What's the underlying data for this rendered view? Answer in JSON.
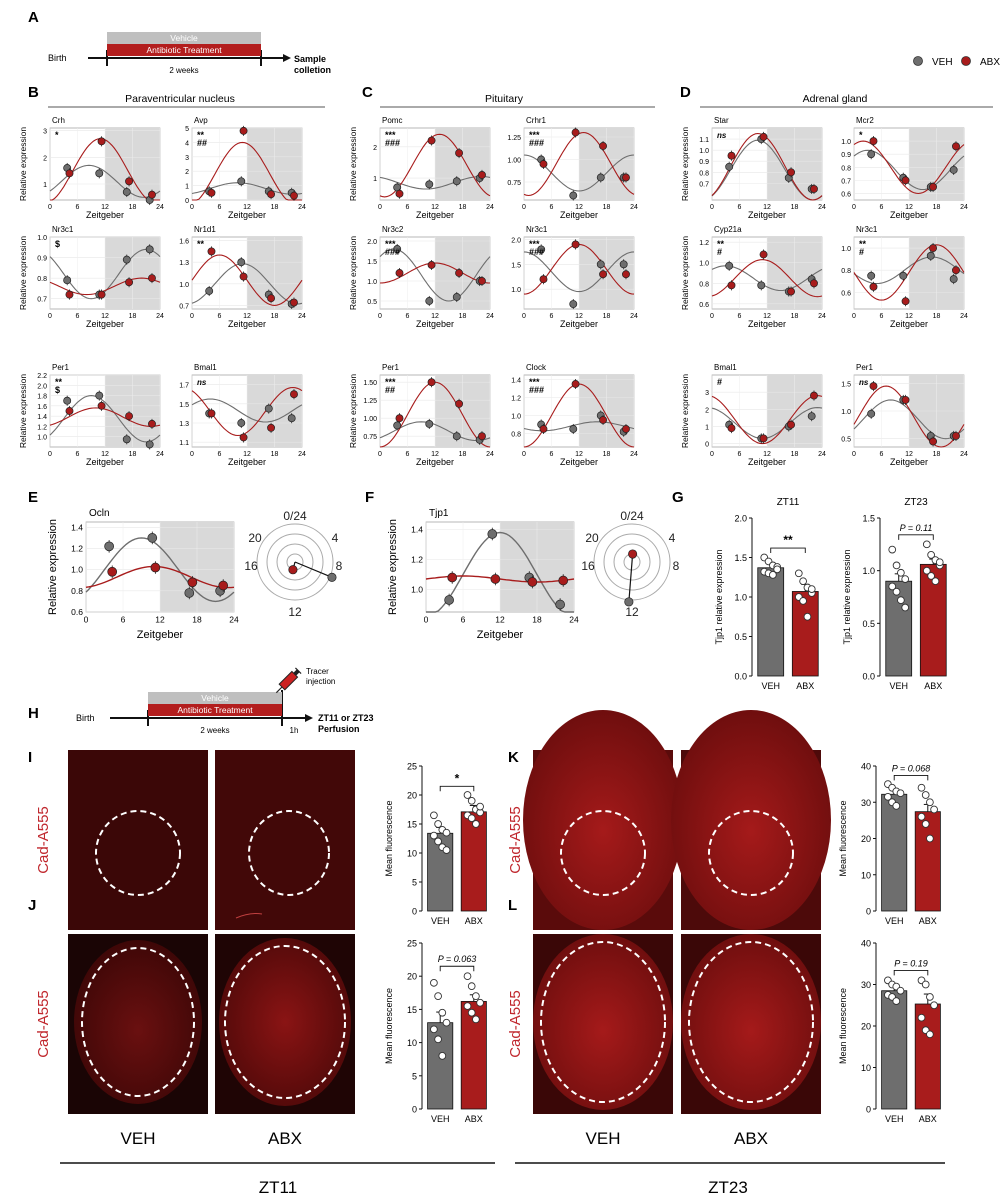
{
  "panelA": {
    "letter": "A",
    "birth": "Birth",
    "vehicle": "Vehicle",
    "treatment": "Antibiotic Treatment",
    "duration": "2 weeks",
    "sample1": "Sample",
    "sample2": "colletion"
  },
  "legend": {
    "veh": "VEH",
    "abx": "ABX"
  },
  "colors": {
    "veh": "#6e6e6e",
    "abx": "#a81c1c",
    "shade": "#d9d9d9",
    "tissue_bg": "#2a0a0a",
    "tissue": "#5a0f0f"
  },
  "sections": [
    {
      "letter": "B",
      "title": "Paraventricular nucleus"
    },
    {
      "letter": "C",
      "title": "Pituitary"
    },
    {
      "letter": "D",
      "title": "Adrenal gland"
    }
  ],
  "mini_axis": {
    "xlabel": "Zeitgeber",
    "ylabel": "Relative expression",
    "xticks": [
      "0",
      "6",
      "12",
      "18",
      "24"
    ]
  },
  "chart_data": [
    {
      "type": "line",
      "gene": "Crh",
      "sig": [
        "*"
      ],
      "ylim": [
        0.4,
        3.1
      ],
      "yticks": [
        "1",
        "2",
        "3"
      ],
      "yt": [
        1,
        2,
        3
      ],
      "x": [
        4,
        11,
        17,
        22
      ],
      "veh": [
        1.6,
        1.4,
        0.7,
        0.4
      ],
      "abx": [
        1.4,
        2.6,
        1.1,
        0.6
      ],
      "veh_fit": {
        "m": 1.1,
        "a": 0.6,
        "p": 8.5
      },
      "abx_fit": {
        "m": 1.5,
        "a": 1.2,
        "p": 11
      }
    },
    {
      "type": "line",
      "gene": "Avp",
      "sig": [
        "**",
        "##"
      ],
      "ylim": [
        0,
        5
      ],
      "yticks": [
        "0",
        "1",
        "2",
        "3",
        "4",
        "5"
      ],
      "yt": [
        0,
        1,
        2,
        3,
        4,
        5
      ],
      "x": [
        4,
        11,
        17,
        22
      ],
      "veh": [
        0.6,
        1.3,
        0.6,
        0.5
      ],
      "abx": [
        0.5,
        4.8,
        0.4,
        0.3
      ],
      "veh_fit": {
        "m": 0.8,
        "a": 0.4,
        "p": 10
      },
      "abx_fit": {
        "m": 1.8,
        "a": 2.2,
        "p": 11
      }
    },
    {
      "type": "line",
      "gene": "Nr3c1",
      "sig": [
        "$"
      ],
      "ylim": [
        0.65,
        1.0
      ],
      "yticks": [
        "0.7",
        "0.8",
        "0.9",
        "1.0"
      ],
      "yt": [
        0.7,
        0.8,
        0.9,
        1.0
      ],
      "x": [
        4,
        11,
        17,
        22
      ],
      "veh": [
        0.79,
        0.72,
        0.89,
        0.94
      ],
      "abx": [
        0.72,
        0.72,
        0.78,
        0.8
      ],
      "veh_fit": {
        "m": 0.82,
        "a": 0.12,
        "p": 21
      },
      "abx_fit": {
        "m": 0.76,
        "a": 0.04,
        "p": 20
      }
    },
    {
      "type": "line",
      "gene": "Nr1d1",
      "sig": [
        "**"
      ],
      "ylim": [
        0.65,
        1.65
      ],
      "yticks": [
        "0.7",
        "1.0",
        "1.3",
        "1.6"
      ],
      "yt": [
        0.7,
        1.0,
        1.3,
        1.6
      ],
      "x": [
        4,
        11,
        17,
        22
      ],
      "veh": [
        0.9,
        1.3,
        0.85,
        0.72
      ],
      "abx": [
        1.45,
        1.1,
        0.8,
        0.74
      ],
      "veh_fit": {
        "m": 1.0,
        "a": 0.28,
        "p": 11
      },
      "abx_fit": {
        "m": 1.05,
        "a": 0.35,
        "p": 6
      }
    },
    {
      "type": "line",
      "gene": "Per1",
      "sig": [
        "**",
        "$"
      ],
      "ylim": [
        0.8,
        2.2
      ],
      "yticks": [
        "1.0",
        "1.2",
        "1.4",
        "1.6",
        "1.8",
        "2.0",
        "2.2"
      ],
      "yt": [
        1.0,
        1.2,
        1.4,
        1.6,
        1.8,
        2.0,
        2.2
      ],
      "x": [
        4,
        11,
        17,
        22
      ],
      "veh": [
        1.7,
        1.8,
        0.95,
        0.85
      ],
      "abx": [
        1.5,
        1.6,
        1.4,
        1.25
      ],
      "veh_fit": {
        "m": 1.35,
        "a": 0.45,
        "p": 9
      },
      "abx_fit": {
        "m": 1.38,
        "a": 0.18,
        "p": 10
      }
    },
    {
      "type": "line",
      "gene": "Bmal1",
      "sig": [
        "ns"
      ],
      "ylim": [
        1.05,
        1.8
      ],
      "yticks": [
        "1.1",
        "1.3",
        "1.5",
        "1.7"
      ],
      "yt": [
        1.1,
        1.3,
        1.5,
        1.7
      ],
      "x": [
        4,
        11,
        17,
        22
      ],
      "veh": [
        1.4,
        1.3,
        1.45,
        1.35
      ],
      "abx": [
        1.4,
        1.15,
        1.25,
        1.6
      ],
      "veh_fit": {
        "m": 1.43,
        "a": 0.12,
        "p": 4
      },
      "abx_fit": {
        "m": 1.42,
        "a": 0.25,
        "p": 22
      }
    },
    {
      "type": "line",
      "gene": "Pomc",
      "sig": [
        "***",
        "###"
      ],
      "ylim": [
        0.3,
        2.6
      ],
      "yticks": [
        "1",
        "2"
      ],
      "yt": [
        1,
        2
      ],
      "x": [
        4,
        11,
        17,
        22
      ],
      "veh": [
        0.7,
        0.8,
        0.9,
        1.0
      ],
      "abx": [
        0.5,
        2.2,
        1.8,
        1.1
      ],
      "veh_fit": {
        "m": 0.85,
        "a": 0.2,
        "p": 22
      },
      "abx_fit": {
        "m": 1.4,
        "a": 1.0,
        "p": 13
      }
    },
    {
      "type": "line",
      "gene": "Crhr1",
      "sig": [
        "***",
        "###"
      ],
      "ylim": [
        0.55,
        1.35
      ],
      "yticks": [
        "0.75",
        "1.00",
        "1.25"
      ],
      "yt": [
        0.75,
        1.0,
        1.25
      ],
      "x": [
        4,
        11,
        17,
        22
      ],
      "veh": [
        1.0,
        0.6,
        0.8,
        0.8
      ],
      "abx": [
        0.95,
        1.3,
        1.15,
        0.8
      ],
      "veh_fit": {
        "m": 0.85,
        "a": 0.2,
        "p": 0
      },
      "abx_fit": {
        "m": 0.95,
        "a": 0.35,
        "p": 13
      }
    },
    {
      "type": "line",
      "gene": "Nr3c2",
      "sig": [
        "***",
        "###"
      ],
      "ylim": [
        0.3,
        2.1
      ],
      "yticks": [
        "0.5",
        "1.0",
        "1.5",
        "2.0"
      ],
      "yt": [
        0.5,
        1.0,
        1.5,
        2.0
      ],
      "x": [
        4,
        11,
        17,
        22
      ],
      "veh": [
        1.8,
        0.5,
        0.6,
        1.0
      ],
      "abx": [
        1.2,
        1.4,
        1.2,
        1.0
      ],
      "veh_fit": {
        "m": 1.15,
        "a": 0.65,
        "p": 3
      },
      "abx_fit": {
        "m": 1.2,
        "a": 0.25,
        "p": 12
      }
    },
    {
      "type": "line",
      "gene": "Nr3c1",
      "sig": [
        "***",
        "###"
      ],
      "ylim": [
        0.6,
        2.05
      ],
      "yticks": [
        "1.0",
        "1.5",
        "2.0"
      ],
      "yt": [
        1.0,
        1.5,
        2.0
      ],
      "x": [
        4,
        11,
        17,
        22
      ],
      "veh": [
        1.8,
        0.7,
        1.5,
        1.5
      ],
      "abx": [
        1.2,
        1.9,
        1.3,
        1.3
      ],
      "veh_fit": {
        "m": 1.35,
        "a": 0.4,
        "p": 0
      },
      "abx_fit": {
        "m": 1.4,
        "a": 0.5,
        "p": 12
      }
    },
    {
      "type": "line",
      "gene": "Per1",
      "sig": [
        "***",
        "##"
      ],
      "ylim": [
        0.6,
        1.6
      ],
      "yticks": [
        "0.75",
        "1.00",
        "1.25",
        "1.50"
      ],
      "yt": [
        0.75,
        1.0,
        1.25,
        1.5
      ],
      "x": [
        4,
        11,
        17,
        22
      ],
      "veh": [
        0.9,
        0.92,
        0.75,
        0.7
      ],
      "abx": [
        1.0,
        1.5,
        1.2,
        0.75
      ],
      "veh_fit": {
        "m": 0.82,
        "a": 0.13,
        "p": 9
      },
      "abx_fit": {
        "m": 1.05,
        "a": 0.45,
        "p": 12
      }
    },
    {
      "type": "line",
      "gene": "Clock",
      "sig": [
        "***",
        "###"
      ],
      "ylim": [
        0.65,
        1.45
      ],
      "yticks": [
        "0.8",
        "1.0",
        "1.2",
        "1.4"
      ],
      "yt": [
        0.8,
        1.0,
        1.2,
        1.4
      ],
      "x": [
        4,
        11,
        17,
        22
      ],
      "veh": [
        0.9,
        0.85,
        1.0,
        0.82
      ],
      "abx": [
        0.85,
        1.35,
        0.95,
        0.85
      ],
      "veh_fit": {
        "m": 0.88,
        "a": 0.05,
        "p": 16
      },
      "abx_fit": {
        "m": 1.0,
        "a": 0.35,
        "p": 12
      }
    },
    {
      "type": "line",
      "gene": "Star",
      "sig": [
        "ns"
      ],
      "ylim": [
        0.55,
        1.2
      ],
      "yticks": [
        "0.7",
        "0.8",
        "0.9",
        "1.0",
        "1.1"
      ],
      "yt": [
        0.7,
        0.8,
        0.9,
        1.0,
        1.1
      ],
      "x": [
        4,
        11,
        17,
        22
      ],
      "veh": [
        0.85,
        1.1,
        0.75,
        0.65
      ],
      "abx": [
        0.95,
        1.12,
        0.8,
        0.65
      ],
      "veh_fit": {
        "m": 0.82,
        "a": 0.27,
        "p": 10
      },
      "abx_fit": {
        "m": 0.85,
        "a": 0.3,
        "p": 10
      }
    },
    {
      "type": "line",
      "gene": "Mcr2",
      "sig": [
        "*"
      ],
      "ylim": [
        0.55,
        1.1
      ],
      "yticks": [
        "0.6",
        "0.7",
        "0.8",
        "0.9",
        "1.0"
      ],
      "yt": [
        0.6,
        0.7,
        0.8,
        0.9,
        1.0
      ],
      "x": [
        4,
        11,
        17,
        22
      ],
      "veh": [
        0.9,
        0.72,
        0.65,
        0.78
      ],
      "abx": [
        1.0,
        0.7,
        0.65,
        0.96
      ],
      "veh_fit": {
        "m": 0.78,
        "a": 0.15,
        "p": 3
      },
      "abx_fit": {
        "m": 0.8,
        "a": 0.2,
        "p": 2
      }
    },
    {
      "type": "line",
      "gene": "Cyp21a",
      "sig": [
        "**",
        "#"
      ],
      "ylim": [
        0.55,
        1.25
      ],
      "yticks": [
        "0.6",
        "0.8",
        "1.0",
        "1.2"
      ],
      "yt": [
        0.6,
        0.8,
        1.0,
        1.2
      ],
      "x": [
        4,
        11,
        17,
        22
      ],
      "veh": [
        0.97,
        0.78,
        0.72,
        0.84
      ],
      "abx": [
        0.78,
        1.08,
        0.72,
        0.8
      ],
      "veh_fit": {
        "m": 0.85,
        "a": 0.12,
        "p": 3
      },
      "abx_fit": {
        "m": 0.85,
        "a": 0.18,
        "p": 11
      }
    },
    {
      "type": "line",
      "gene": "Nr3c1",
      "sig": [
        "**",
        "#"
      ],
      "ylim": [
        0.45,
        1.1
      ],
      "yticks": [
        "0.6",
        "0.8",
        "1.0"
      ],
      "yt": [
        0.6,
        0.8,
        1.0
      ],
      "x": [
        4,
        11,
        17,
        22
      ],
      "veh": [
        0.75,
        0.75,
        0.93,
        0.72
      ],
      "abx": [
        0.65,
        0.52,
        1.0,
        0.8
      ],
      "veh_fit": {
        "m": 0.8,
        "a": 0.12,
        "p": 17
      },
      "abx_fit": {
        "m": 0.78,
        "a": 0.25,
        "p": 18
      }
    },
    {
      "type": "line",
      "gene": "Bmal1",
      "sig": [
        "#"
      ],
      "ylim": [
        -0.2,
        4.0
      ],
      "yticks": [
        "0",
        "1",
        "2",
        "3"
      ],
      "yt": [
        0,
        1,
        2,
        3
      ],
      "x": [
        4,
        11,
        17,
        22
      ],
      "veh": [
        1.1,
        0.3,
        1.0,
        1.6
      ],
      "abx": [
        0.9,
        0.3,
        1.1,
        2.8
      ],
      "veh_fit": {
        "m": 1.2,
        "a": 0.9,
        "p": 23
      },
      "abx_fit": {
        "m": 1.4,
        "a": 1.4,
        "p": 23
      }
    },
    {
      "type": "line",
      "gene": "Per1",
      "sig": [
        "ns"
      ],
      "ylim": [
        0.35,
        1.65
      ],
      "yticks": [
        "0.5",
        "1.0",
        "1.5"
      ],
      "yt": [
        0.5,
        1.0,
        1.5
      ],
      "x": [
        4,
        11,
        17,
        22
      ],
      "veh": [
        0.95,
        1.2,
        0.55,
        0.55
      ],
      "abx": [
        1.45,
        1.2,
        0.45,
        0.55
      ],
      "veh_fit": {
        "m": 0.85,
        "a": 0.35,
        "p": 8
      },
      "abx_fit": {
        "m": 0.9,
        "a": 0.55,
        "p": 7
      }
    }
  ],
  "panelE": {
    "letter": "E",
    "gene": "Ocln",
    "ylabel": "Relative expression",
    "xlabel": "Zeitgeber",
    "yticks": [
      "0.6",
      "0.8",
      "1.0",
      "1.2",
      "1.4"
    ],
    "yt": [
      0.6,
      0.8,
      1.0,
      1.2,
      1.4
    ],
    "ylim": [
      0.6,
      1.45
    ],
    "x": [
      4,
      11,
      17,
      22
    ],
    "veh": [
      1.22,
      1.3,
      0.78,
      0.8
    ],
    "abx": [
      0.98,
      1.02,
      0.88,
      0.85
    ],
    "veh_fit": {
      "m": 1.0,
      "a": 0.3,
      "p": 9
    },
    "abx_fit": {
      "m": 0.93,
      "a": 0.1,
      "p": 11
    }
  },
  "panelF": {
    "letter": "F",
    "gene": "Tjp1",
    "ylabel": "Relative expression",
    "xlabel": "Zeitgeber",
    "yticks": [
      "1.0",
      "1.2",
      "1.4"
    ],
    "yt": [
      1.0,
      1.2,
      1.4
    ],
    "ylim": [
      0.85,
      1.45
    ],
    "x": [
      4,
      11,
      17,
      22
    ],
    "veh": [
      0.93,
      1.37,
      1.08,
      0.9
    ],
    "abx": [
      1.08,
      1.07,
      1.05,
      1.06
    ],
    "veh_fit": {
      "m": 1.1,
      "a": 0.28,
      "p": 12
    },
    "abx_fit": {
      "m": 1.07,
      "a": 0.02,
      "p": 6
    }
  },
  "polar": {
    "labels": [
      "0/24",
      "4",
      "8",
      "12",
      "16",
      "20"
    ]
  },
  "panelG": {
    "letter": "G",
    "charts": [
      {
        "type": "bar",
        "title": "ZT11",
        "sig": "**",
        "ylabel": "Tjp1 relative expression",
        "categories": [
          "VEH",
          "ABX"
        ],
        "values": [
          1.37,
          1.07
        ],
        "err": [
          0.05,
          0.09
        ],
        "ylim": [
          0,
          2.0
        ],
        "yticks": [
          "0.0",
          "0.5",
          "1.0",
          "1.5",
          "2.0"
        ],
        "dots": [
          [
            1.5,
            1.45,
            1.4,
            1.38,
            1.32,
            1.3,
            1.28,
            1.35
          ],
          [
            1.3,
            1.2,
            1.12,
            1.05,
            1.0,
            0.95,
            0.75,
            1.1
          ]
        ]
      },
      {
        "type": "bar",
        "title": "ZT23",
        "sig": "P = 0.11",
        "ylabel": "Tjp1 relative expression",
        "categories": [
          "VEH",
          "ABX"
        ],
        "values": [
          0.9,
          1.06
        ],
        "err": [
          0.07,
          0.05
        ],
        "ylim": [
          0,
          1.5
        ],
        "yticks": [
          "0.0",
          "0.5",
          "1.0",
          "1.5"
        ],
        "dots": [
          [
            1.2,
            1.05,
            0.98,
            0.92,
            0.85,
            0.8,
            0.72,
            0.65
          ],
          [
            1.25,
            1.15,
            1.1,
            1.05,
            1.0,
            0.95,
            0.9,
            1.08
          ]
        ]
      }
    ]
  },
  "panelH": {
    "letter": "H",
    "birth": "Birth",
    "vehicle": "Vehicle",
    "treatment": "Antibiotic Treatment",
    "duration": "2 weeks",
    "hour": "1h",
    "tracer1": "Tracer",
    "tracer2": "injection",
    "result1": "ZT11 or ZT23",
    "result2": "Perfusion"
  },
  "imaging": {
    "stain": "Cad-A555",
    "veh": "VEH",
    "abx": "ABX",
    "zt11": "ZT11",
    "zt23": "ZT23"
  },
  "fluor": [
    {
      "letter": "I",
      "type": "bar",
      "sig": "*",
      "ylabel": "Mean fluorescence",
      "categories": [
        "VEH",
        "ABX"
      ],
      "values": [
        13.4,
        17.1
      ],
      "err": [
        1.0,
        1.1
      ],
      "ylim": [
        0,
        25
      ],
      "yticks": [
        "0",
        "5",
        "10",
        "15",
        "20",
        "25"
      ],
      "dots": [
        [
          16.5,
          15,
          14,
          13.5,
          13,
          12,
          11,
          10.5
        ],
        [
          20,
          19,
          17.5,
          17,
          16.5,
          16,
          15,
          18
        ]
      ]
    },
    {
      "letter": "J",
      "type": "bar",
      "sig": "P = 0.063",
      "ylabel": "Mean fluorescence",
      "categories": [
        "VEH",
        "ABX"
      ],
      "values": [
        13.0,
        16.2
      ],
      "err": [
        1.6,
        1.0
      ],
      "ylim": [
        0,
        25
      ],
      "yticks": [
        "0",
        "5",
        "10",
        "15",
        "20",
        "25"
      ],
      "dots": [
        [
          19,
          17,
          14.5,
          13,
          12,
          10.5,
          8
        ],
        [
          20,
          18.5,
          17,
          16,
          15.5,
          14.5,
          13.5
        ]
      ]
    },
    {
      "letter": "K",
      "type": "bar",
      "sig": "P = 0.068",
      "ylabel": "Mean fluorescence",
      "categories": [
        "VEH",
        "ABX"
      ],
      "values": [
        32.2,
        27.4
      ],
      "err": [
        1.1,
        2.0
      ],
      "ylim": [
        0,
        40
      ],
      "yticks": [
        "0",
        "10",
        "20",
        "30",
        "40"
      ],
      "dots": [
        [
          35,
          34,
          33,
          32.5,
          31.5,
          30,
          29
        ],
        [
          34,
          32,
          30,
          28,
          26,
          24,
          20
        ]
      ]
    },
    {
      "letter": "L",
      "type": "bar",
      "sig": "P = 0.19",
      "ylabel": "Mean fluorescence",
      "categories": [
        "VEH",
        "ABX"
      ],
      "values": [
        28.5,
        25.3
      ],
      "err": [
        1.1,
        2.4
      ],
      "ylim": [
        0,
        40
      ],
      "yticks": [
        "0",
        "10",
        "20",
        "30",
        "40"
      ],
      "dots": [
        [
          31,
          30,
          29.5,
          28.5,
          27.5,
          27,
          26
        ],
        [
          31,
          30,
          27,
          25,
          22,
          19,
          18
        ]
      ]
    }
  ]
}
